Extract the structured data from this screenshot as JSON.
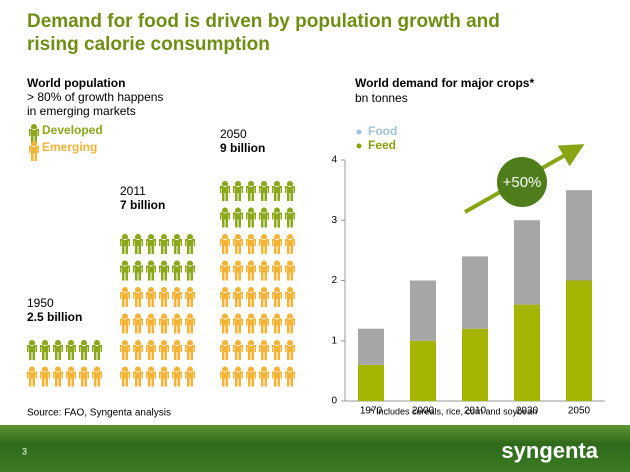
{
  "title": "Demand for food is driven by population growth and rising calorie consumption",
  "population": {
    "heading": "World population",
    "subheading_line1": "> 80% of growth happens",
    "subheading_line2": "in emerging markets",
    "legend": [
      "Developed",
      "Emerging"
    ],
    "groups": [
      {
        "year": "1950",
        "amount": "2.5 billion"
      },
      {
        "year": "2011",
        "amount": "7 billion"
      },
      {
        "year": "2050",
        "amount": "9 billion"
      }
    ]
  },
  "source": "Source: FAO, Syngenta analysis",
  "page_number": "3",
  "logo": "syngenta",
  "chart_data": {
    "type": "bar",
    "stacked": true,
    "title": "World demand for major crops*",
    "subtitle": "bn tonnes",
    "footnote": "* Includes cereals, rice, corn and soybean",
    "annotation": "+50%",
    "categories": [
      "1970",
      "2000",
      "2010",
      "2030",
      "2050"
    ],
    "series": [
      {
        "name": "Food",
        "color": "#a6a6a6",
        "legend_color": "#9ec3d6",
        "values": [
          0.6,
          1.0,
          1.2,
          1.4,
          1.5
        ]
      },
      {
        "name": "Feed",
        "color": "#a4b400",
        "legend_color": "#8aa10a",
        "values": [
          0.6,
          1.0,
          1.2,
          1.6,
          2.0
        ]
      }
    ],
    "ylim": [
      0,
      4
    ],
    "yticks": [
      0,
      1,
      2,
      3,
      4
    ],
    "grid": false,
    "legend": "top-left"
  }
}
